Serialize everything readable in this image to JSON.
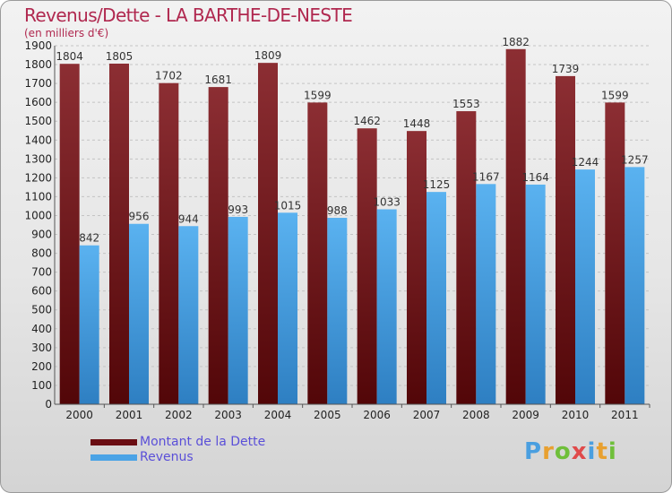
{
  "title": "Revenus/Dette - LA BARTHE-DE-NESTE",
  "subtitle": "(en milliers d'€)",
  "logo": "Proxiti",
  "colors": {
    "dette": "#7a1f24",
    "revenus": "#4aa3e6",
    "title": "#b0284f",
    "legend_text": "#5a4fd8"
  },
  "legend": [
    {
      "name": "Montant de la Dette",
      "color": "#6a0d12"
    },
    {
      "name": "Revenus",
      "color": "#4aa3e6"
    }
  ],
  "chart_data": {
    "type": "bar",
    "title": "Revenus/Dette - LA BARTHE-DE-NESTE",
    "subtitle": "(en milliers d'€)",
    "categories": [
      "2000",
      "2001",
      "2002",
      "2003",
      "2004",
      "2005",
      "2006",
      "2007",
      "2008",
      "2009",
      "2010",
      "2011"
    ],
    "series": [
      {
        "name": "Montant de la Dette",
        "values": [
          1804,
          1805,
          1702,
          1681,
          1809,
          1599,
          1462,
          1448,
          1553,
          1882,
          1739,
          1599
        ]
      },
      {
        "name": "Revenus",
        "values": [
          842,
          956,
          944,
          993,
          1015,
          988,
          1033,
          1125,
          1167,
          1164,
          1244,
          1257
        ]
      }
    ],
    "ylim": [
      0,
      1900
    ],
    "yticks": [
      0,
      100,
      200,
      300,
      400,
      500,
      600,
      700,
      800,
      900,
      1000,
      1100,
      1200,
      1300,
      1400,
      1500,
      1600,
      1700,
      1800,
      1900
    ],
    "grid": true,
    "legend_position": "bottom-left"
  }
}
